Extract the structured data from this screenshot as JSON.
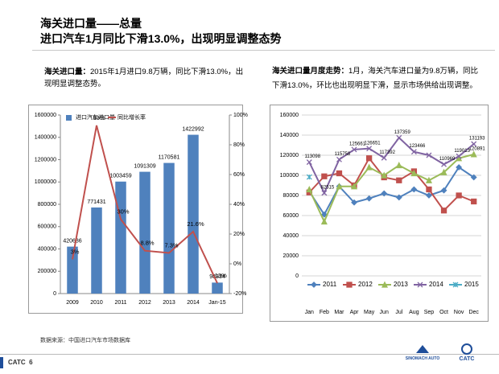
{
  "header": {
    "title": "海关进口量——总量",
    "subtitle": "进口汽车1月同比下滑13.0%，出现明显调整态势"
  },
  "left_text": {
    "label": "海关进口量：",
    "body": "2015年1月进口9.8万辆，同比下滑13.0%，出现明显调整态势。"
  },
  "right_text": {
    "label": "海关进口量月度走势：",
    "body": "1月，海关汽车进口量为9.8万辆，同比下滑13.0%，环比也出现明显下滑，显示市场供给出现调整。"
  },
  "chart_data": [
    {
      "type": "bar",
      "categories": [
        "2009",
        "2010",
        "2011",
        "2012",
        "2013",
        "2014",
        "Jan-15"
      ],
      "series": [
        {
          "name": "进口汽车进口量",
          "color": "#4f81bd",
          "type": "bar",
          "values": [
            420686,
            771431,
            1003459,
            1091309,
            1170581,
            1422992,
            98334
          ]
        },
        {
          "name": "同比增长率",
          "color": "#c0504d",
          "type": "line",
          "axis": "y2",
          "values": [
            3,
            93,
            30,
            8.8,
            7.3,
            21.6,
            -13
          ],
          "value_labels": [
            "3%",
            "93%",
            "30%",
            "8.8%",
            "7.3%",
            "21.6%",
            "-13%"
          ]
        }
      ],
      "ylim": [
        0,
        1600000
      ],
      "yticks": [
        0,
        200000,
        400000,
        600000,
        800000,
        1000000,
        1200000,
        1400000,
        1600000
      ],
      "y2lim": [
        -20,
        100
      ],
      "y2ticks": [
        {
          "value": -20,
          "label": "-20%"
        },
        {
          "value": 0,
          "label": "0%"
        },
        {
          "value": 20,
          "label": "20%"
        },
        {
          "value": 40,
          "label": "40%"
        },
        {
          "value": 60,
          "label": "60%"
        },
        {
          "value": 80,
          "label": "80%"
        },
        {
          "value": 100,
          "label": "100%"
        }
      ],
      "grid": false,
      "legend": "top"
    },
    {
      "type": "line",
      "categories": [
        "Jan",
        "Feb",
        "Mar",
        "Apr",
        "May",
        "Jun",
        "Jul",
        "Aug",
        "Sep",
        "Oct",
        "Nov",
        "Dec"
      ],
      "series": [
        {
          "name": "2011",
          "color": "#4f81bd",
          "marker": "diamond",
          "values": [
            84000,
            61000,
            89000,
            73000,
            77000,
            82000,
            78000,
            86000,
            80000,
            85000,
            108000,
            98000
          ]
        },
        {
          "name": "2012",
          "color": "#c0504d",
          "marker": "square",
          "values": [
            83000,
            99000,
            102000,
            90000,
            117000,
            98000,
            95000,
            104000,
            86000,
            65000,
            80000,
            74000
          ]
        },
        {
          "name": "2013",
          "color": "#9bbb59",
          "marker": "triangle",
          "values": [
            86000,
            54000,
            89000,
            89000,
            108000,
            100000,
            110000,
            102000,
            95000,
            103000,
            117000,
            120891
          ],
          "value_labels": [
            null,
            null,
            null,
            null,
            null,
            null,
            null,
            null,
            null,
            null,
            null,
            "120891"
          ]
        },
        {
          "name": "2014",
          "color": "#8064a2",
          "marker": "cross",
          "values": [
            113098,
            82515,
            115758,
            125661,
            126651,
            117392,
            137359,
            123466,
            120000,
            110969,
            119013,
            131193
          ],
          "value_labels": [
            "113098",
            "82515",
            "115758",
            "125661",
            "126651",
            "117392",
            "137359",
            "123466",
            null,
            "110969",
            "119013",
            "131193"
          ]
        },
        {
          "name": "2015",
          "color": "#4bacc6",
          "marker": "star",
          "values": [
            98334,
            null,
            null,
            null,
            null,
            null,
            null,
            null,
            null,
            null,
            null,
            null
          ]
        }
      ],
      "ylim": [
        0,
        160000
      ],
      "yticks": [
        0,
        20000,
        40000,
        60000,
        80000,
        100000,
        120000,
        140000,
        160000
      ],
      "grid": true,
      "legend": "bottom"
    }
  ],
  "source": "数据来源：中国进口汽车市场数据库",
  "footer": {
    "brand": "CATC",
    "page": 6,
    "logos": [
      "SINOMACH AUTO",
      "CATC"
    ]
  }
}
